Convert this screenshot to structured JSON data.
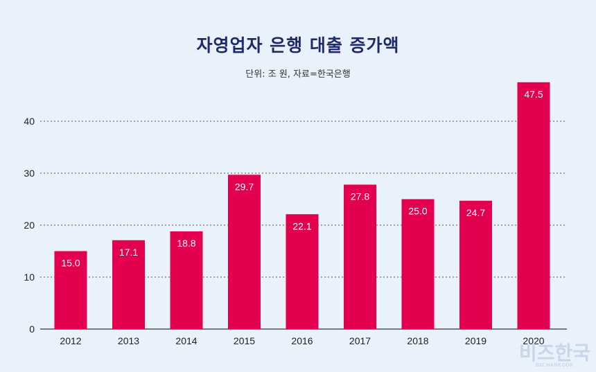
{
  "chart_data": {
    "type": "bar",
    "title": "자영업자 은행 대출 증가액",
    "subtitle": "단위: 조 원, 자료=한국은행",
    "categories": [
      "2012",
      "2013",
      "2014",
      "2015",
      "2016",
      "2017",
      "2018",
      "2019",
      "2020"
    ],
    "values": [
      15.0,
      17.1,
      18.8,
      29.7,
      22.1,
      27.8,
      25.0,
      24.7,
      47.5
    ],
    "value_labels": [
      "15.0",
      "17.1",
      "18.8",
      "29.7",
      "22.1",
      "27.8",
      "25.0",
      "24.7",
      "47.5"
    ],
    "y_ticks": [
      0,
      10,
      20,
      30,
      40
    ],
    "ylim": [
      0,
      50
    ],
    "grid": true,
    "bar_color": "#e2004f"
  },
  "logo": {
    "main": "비즈한국",
    "sub": "BIZ.HANKOOK"
  }
}
